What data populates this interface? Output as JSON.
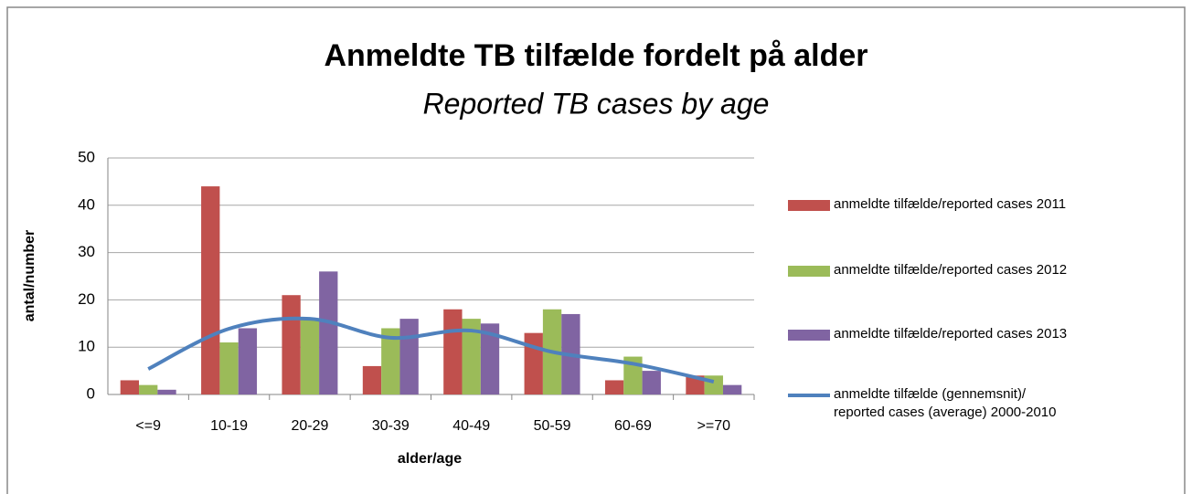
{
  "chart_data": {
    "type": "bar",
    "title": "Anmeldte TB tilfælde fordelt på alder",
    "subtitle": "Reported TB cases by age",
    "x_label": "alder/age",
    "y_label": "antal/number",
    "categories": [
      "<=9",
      "10-19",
      "20-29",
      "30-39",
      "40-49",
      "50-59",
      "60-69",
      ">=70"
    ],
    "series": [
      {
        "name": "anmeldte tilfælde/reported cases 2011",
        "color": "#c0504d",
        "type": "bar",
        "values": [
          3,
          44,
          21,
          6,
          18,
          13,
          3,
          4
        ]
      },
      {
        "name": "anmeldte tilfælde/reported cases 2012",
        "color": "#9bbb59",
        "type": "bar",
        "values": [
          2,
          11,
          16,
          14,
          16,
          18,
          8,
          4
        ]
      },
      {
        "name": "anmeldte tilfælde/reported cases 2013",
        "color": "#8064a2",
        "type": "bar",
        "values": [
          1,
          14,
          26,
          16,
          15,
          17,
          5,
          2
        ]
      },
      {
        "name": "anmeldte tilfælde (gennemsnit)/\nreported cases (average) 2000-2010",
        "color": "#4f81bd",
        "type": "line",
        "values": [
          5.4,
          13.9,
          16,
          12,
          13.5,
          9,
          6.5,
          2.7
        ]
      }
    ],
    "ylim": [
      0,
      50
    ],
    "yticks": [
      0,
      10,
      20,
      30,
      40,
      50
    ],
    "grid": true
  }
}
